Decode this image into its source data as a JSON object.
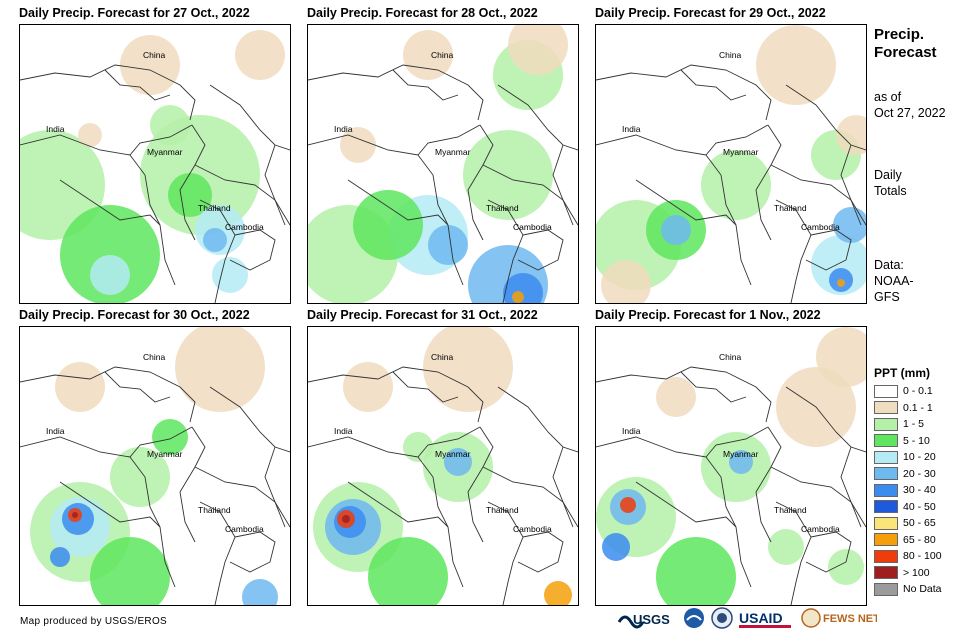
{
  "panels": [
    {
      "title": "Daily Precip. Forecast for 27 Oct., 2022"
    },
    {
      "title": "Daily Precip. Forecast for 28 Oct., 2022"
    },
    {
      "title": "Daily Precip. Forecast for 29 Oct., 2022"
    },
    {
      "title": "Daily Precip. Forecast for 30 Oct., 2022"
    },
    {
      "title": "Daily Precip. Forecast for 31 Oct., 2022"
    },
    {
      "title": "Daily Precip. Forecast for 1 Nov., 2022"
    }
  ],
  "map_labels": {
    "china": "China",
    "india": "India",
    "myanmar": "Myanmar",
    "thailand": "Thailand",
    "cambodia": "Cambodia"
  },
  "side": {
    "title_line1": "Precip.",
    "title_line2": "Forecast",
    "asof_line1": "as of",
    "asof_line2": "Oct 27, 2022",
    "daily_line1": "Daily",
    "daily_line2": "Totals",
    "data_line1": "Data:",
    "data_line2": "NOAA-",
    "data_line3": "GFS"
  },
  "legend": {
    "title": "PPT (mm)",
    "items": [
      {
        "label": "0 - 0.1",
        "color": "#ffffff"
      },
      {
        "label": "0.1 - 1",
        "color": "#f0dcbe"
      },
      {
        "label": "1 - 5",
        "color": "#b4f0a8"
      },
      {
        "label": "5 - 10",
        "color": "#5ee65e"
      },
      {
        "label": "10 - 20",
        "color": "#b4ebf5"
      },
      {
        "label": "20 - 30",
        "color": "#6eb9f0"
      },
      {
        "label": "30 - 40",
        "color": "#3c8cf0"
      },
      {
        "label": "40 - 50",
        "color": "#1e5adc"
      },
      {
        "label": "50 - 65",
        "color": "#fae678"
      },
      {
        "label": "65 - 80",
        "color": "#f5a00a"
      },
      {
        "label": "80 - 100",
        "color": "#f03c0a"
      },
      {
        "label": "> 100",
        "color": "#a01e1e"
      },
      {
        "label": "No Data",
        "color": "#9b9b9b"
      }
    ]
  },
  "credit": "Map produced by USGS/EROS",
  "logos": {
    "usgs": "USGS",
    "usaid": "USAID",
    "fewsnet": "FEWS NET"
  },
  "rain_blobs": [
    [
      {
        "x": 30,
        "y": 160,
        "r": 55,
        "c": "#b4f0a8"
      },
      {
        "x": 180,
        "y": 150,
        "r": 60,
        "c": "#b4f0a8"
      },
      {
        "x": 90,
        "y": 230,
        "r": 50,
        "c": "#5ee65e"
      },
      {
        "x": 170,
        "y": 170,
        "r": 22,
        "c": "#5ee65e"
      },
      {
        "x": 200,
        "y": 205,
        "r": 25,
        "c": "#b4ebf5"
      },
      {
        "x": 195,
        "y": 215,
        "r": 12,
        "c": "#6eb9f0"
      },
      {
        "x": 90,
        "y": 250,
        "r": 20,
        "c": "#b4ebf5"
      },
      {
        "x": 210,
        "y": 250,
        "r": 18,
        "c": "#b4ebf5"
      },
      {
        "x": 130,
        "y": 40,
        "r": 30,
        "c": "#f0dcbe"
      },
      {
        "x": 240,
        "y": 30,
        "r": 25,
        "c": "#f0dcbe"
      },
      {
        "x": 70,
        "y": 110,
        "r": 12,
        "c": "#f0dcbe"
      },
      {
        "x": 150,
        "y": 100,
        "r": 20,
        "c": "#b4f0a8"
      }
    ],
    [
      {
        "x": 40,
        "y": 230,
        "r": 50,
        "c": "#b4f0a8"
      },
      {
        "x": 120,
        "y": 210,
        "r": 40,
        "c": "#b4ebf5"
      },
      {
        "x": 140,
        "y": 220,
        "r": 20,
        "c": "#6eb9f0"
      },
      {
        "x": 200,
        "y": 260,
        "r": 40,
        "c": "#6eb9f0"
      },
      {
        "x": 215,
        "y": 268,
        "r": 20,
        "c": "#3c8cf0"
      },
      {
        "x": 210,
        "y": 272,
        "r": 6,
        "c": "#f5a00a"
      },
      {
        "x": 80,
        "y": 200,
        "r": 35,
        "c": "#5ee65e"
      },
      {
        "x": 200,
        "y": 150,
        "r": 45,
        "c": "#b4f0a8"
      },
      {
        "x": 220,
        "y": 50,
        "r": 35,
        "c": "#b4f0a8"
      },
      {
        "x": 120,
        "y": 30,
        "r": 25,
        "c": "#f0dcbe"
      },
      {
        "x": 230,
        "y": 20,
        "r": 30,
        "c": "#f0dcbe"
      },
      {
        "x": 50,
        "y": 120,
        "r": 18,
        "c": "#f0dcbe"
      }
    ],
    [
      {
        "x": 40,
        "y": 220,
        "r": 45,
        "c": "#b4f0a8"
      },
      {
        "x": 80,
        "y": 205,
        "r": 30,
        "c": "#5ee65e"
      },
      {
        "x": 80,
        "y": 205,
        "r": 15,
        "c": "#6eb9f0"
      },
      {
        "x": 140,
        "y": 160,
        "r": 35,
        "c": "#b4f0a8"
      },
      {
        "x": 245,
        "y": 240,
        "r": 30,
        "c": "#b4ebf5"
      },
      {
        "x": 245,
        "y": 255,
        "r": 12,
        "c": "#3c8cf0"
      },
      {
        "x": 245,
        "y": 258,
        "r": 4,
        "c": "#f5a00a"
      },
      {
        "x": 240,
        "y": 130,
        "r": 25,
        "c": "#b4f0a8"
      },
      {
        "x": 200,
        "y": 40,
        "r": 40,
        "c": "#f0dcbe"
      },
      {
        "x": 260,
        "y": 110,
        "r": 20,
        "c": "#f0dcbe"
      },
      {
        "x": 30,
        "y": 260,
        "r": 25,
        "c": "#f0dcbe"
      },
      {
        "x": 255,
        "y": 200,
        "r": 18,
        "c": "#6eb9f0"
      }
    ],
    [
      {
        "x": 60,
        "y": 205,
        "r": 50,
        "c": "#b4f0a8"
      },
      {
        "x": 60,
        "y": 200,
        "r": 30,
        "c": "#b4ebf5"
      },
      {
        "x": 58,
        "y": 192,
        "r": 16,
        "c": "#3c8cf0"
      },
      {
        "x": 55,
        "y": 188,
        "r": 7,
        "c": "#f03c0a"
      },
      {
        "x": 55,
        "y": 188,
        "r": 3,
        "c": "#a01e1e"
      },
      {
        "x": 40,
        "y": 230,
        "r": 10,
        "c": "#3c8cf0"
      },
      {
        "x": 120,
        "y": 150,
        "r": 30,
        "c": "#b4f0a8"
      },
      {
        "x": 110,
        "y": 250,
        "r": 40,
        "c": "#5ee65e"
      },
      {
        "x": 240,
        "y": 270,
        "r": 18,
        "c": "#6eb9f0"
      },
      {
        "x": 200,
        "y": 40,
        "r": 45,
        "c": "#f0dcbe"
      },
      {
        "x": 60,
        "y": 60,
        "r": 25,
        "c": "#f0dcbe"
      },
      {
        "x": 150,
        "y": 110,
        "r": 18,
        "c": "#5ee65e"
      }
    ],
    [
      {
        "x": 50,
        "y": 200,
        "r": 45,
        "c": "#b4f0a8"
      },
      {
        "x": 45,
        "y": 200,
        "r": 28,
        "c": "#6eb9f0"
      },
      {
        "x": 42,
        "y": 195,
        "r": 16,
        "c": "#3c8cf0"
      },
      {
        "x": 38,
        "y": 192,
        "r": 9,
        "c": "#f03c0a"
      },
      {
        "x": 38,
        "y": 192,
        "r": 4,
        "c": "#a01e1e"
      },
      {
        "x": 150,
        "y": 140,
        "r": 35,
        "c": "#b4f0a8"
      },
      {
        "x": 150,
        "y": 135,
        "r": 14,
        "c": "#6eb9f0"
      },
      {
        "x": 100,
        "y": 250,
        "r": 40,
        "c": "#5ee65e"
      },
      {
        "x": 250,
        "y": 268,
        "r": 14,
        "c": "#f5a00a"
      },
      {
        "x": 160,
        "y": 40,
        "r": 45,
        "c": "#f0dcbe"
      },
      {
        "x": 60,
        "y": 60,
        "r": 25,
        "c": "#f0dcbe"
      },
      {
        "x": 110,
        "y": 120,
        "r": 15,
        "c": "#b4f0a8"
      }
    ],
    [
      {
        "x": 40,
        "y": 190,
        "r": 40,
        "c": "#b4f0a8"
      },
      {
        "x": 32,
        "y": 180,
        "r": 18,
        "c": "#6eb9f0"
      },
      {
        "x": 32,
        "y": 178,
        "r": 8,
        "c": "#f03c0a"
      },
      {
        "x": 20,
        "y": 220,
        "r": 14,
        "c": "#3c8cf0"
      },
      {
        "x": 140,
        "y": 140,
        "r": 35,
        "c": "#b4f0a8"
      },
      {
        "x": 145,
        "y": 135,
        "r": 12,
        "c": "#6eb9f0"
      },
      {
        "x": 100,
        "y": 250,
        "r": 40,
        "c": "#5ee65e"
      },
      {
        "x": 220,
        "y": 80,
        "r": 40,
        "c": "#f0dcbe"
      },
      {
        "x": 250,
        "y": 30,
        "r": 30,
        "c": "#f0dcbe"
      },
      {
        "x": 80,
        "y": 70,
        "r": 20,
        "c": "#f0dcbe"
      },
      {
        "x": 190,
        "y": 220,
        "r": 18,
        "c": "#b4f0a8"
      },
      {
        "x": 250,
        "y": 240,
        "r": 18,
        "c": "#b4f0a8"
      }
    ]
  ]
}
